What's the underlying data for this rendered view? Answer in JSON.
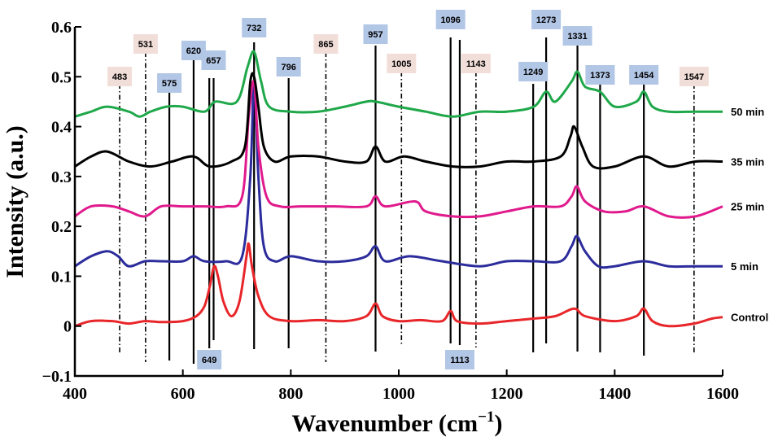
{
  "chart_data": {
    "type": "line",
    "xlabel": "Wavenumber (cm",
    "xlabel_sup": "−1",
    "xlabel_close": ")",
    "ylabel": "Intensity (a.u.)",
    "xlim": [
      400,
      1600
    ],
    "ylim": [
      -0.1,
      0.6
    ],
    "x_ticks": [
      400,
      600,
      800,
      1000,
      1200,
      1400,
      1600
    ],
    "y_ticks": [
      -0.1,
      0,
      0.1,
      0.2,
      0.3,
      0.4,
      0.5,
      0.6
    ],
    "y_tick_labels": [
      "−0.1",
      "0",
      "0.1",
      "0.2",
      "0.3",
      "0.4",
      "0.5",
      "0.6"
    ],
    "series": [
      {
        "name": "Control",
        "color": "#e8262a",
        "points": [
          [
            400,
            0.0
          ],
          [
            430,
            0.01
          ],
          [
            470,
            0.01
          ],
          [
            500,
            0.005
          ],
          [
            530,
            0.01
          ],
          [
            560,
            0.008
          ],
          [
            600,
            0.01
          ],
          [
            625,
            0.02
          ],
          [
            640,
            0.04
          ],
          [
            650,
            0.08
          ],
          [
            658,
            0.12
          ],
          [
            665,
            0.1
          ],
          [
            675,
            0.05
          ],
          [
            690,
            0.02
          ],
          [
            705,
            0.05
          ],
          [
            718,
            0.14
          ],
          [
            722,
            0.165
          ],
          [
            728,
            0.12
          ],
          [
            740,
            0.06
          ],
          [
            760,
            0.02
          ],
          [
            800,
            0.01
          ],
          [
            850,
            0.012
          ],
          [
            900,
            0.01
          ],
          [
            940,
            0.02
          ],
          [
            957,
            0.045
          ],
          [
            970,
            0.02
          ],
          [
            1000,
            0.01
          ],
          [
            1040,
            0.012
          ],
          [
            1080,
            0.01
          ],
          [
            1096,
            0.03
          ],
          [
            1108,
            0.01
          ],
          [
            1150,
            0.005
          ],
          [
            1200,
            0.01
          ],
          [
            1250,
            0.015
          ],
          [
            1290,
            0.02
          ],
          [
            1325,
            0.035
          ],
          [
            1345,
            0.02
          ],
          [
            1400,
            0.01
          ],
          [
            1440,
            0.02
          ],
          [
            1454,
            0.035
          ],
          [
            1470,
            0.01
          ],
          [
            1500,
            0.0
          ],
          [
            1547,
            0.005
          ],
          [
            1580,
            0.015
          ],
          [
            1600,
            0.018
          ]
        ]
      },
      {
        "name": "5 min",
        "color": "#2c2c9c",
        "points": [
          [
            400,
            0.12
          ],
          [
            430,
            0.14
          ],
          [
            460,
            0.15
          ],
          [
            480,
            0.14
          ],
          [
            500,
            0.12
          ],
          [
            530,
            0.13
          ],
          [
            560,
            0.13
          ],
          [
            600,
            0.13
          ],
          [
            620,
            0.14
          ],
          [
            640,
            0.13
          ],
          [
            680,
            0.13
          ],
          [
            710,
            0.14
          ],
          [
            725,
            0.3
          ],
          [
            732,
            0.49
          ],
          [
            740,
            0.3
          ],
          [
            750,
            0.16
          ],
          [
            770,
            0.13
          ],
          [
            800,
            0.14
          ],
          [
            850,
            0.13
          ],
          [
            900,
            0.13
          ],
          [
            940,
            0.14
          ],
          [
            957,
            0.16
          ],
          [
            975,
            0.13
          ],
          [
            1020,
            0.14
          ],
          [
            1080,
            0.13
          ],
          [
            1150,
            0.12
          ],
          [
            1200,
            0.13
          ],
          [
            1250,
            0.13
          ],
          [
            1300,
            0.13
          ],
          [
            1320,
            0.16
          ],
          [
            1330,
            0.18
          ],
          [
            1345,
            0.15
          ],
          [
            1370,
            0.12
          ],
          [
            1400,
            0.12
          ],
          [
            1454,
            0.13
          ],
          [
            1500,
            0.12
          ],
          [
            1550,
            0.12
          ],
          [
            1600,
            0.12
          ]
        ]
      },
      {
        "name": "25 min",
        "color": "#e01a8c",
        "points": [
          [
            400,
            0.22
          ],
          [
            430,
            0.24
          ],
          [
            470,
            0.24
          ],
          [
            500,
            0.23
          ],
          [
            530,
            0.22
          ],
          [
            560,
            0.24
          ],
          [
            600,
            0.24
          ],
          [
            640,
            0.24
          ],
          [
            680,
            0.24
          ],
          [
            710,
            0.26
          ],
          [
            722,
            0.42
          ],
          [
            732,
            0.49
          ],
          [
            740,
            0.36
          ],
          [
            755,
            0.26
          ],
          [
            780,
            0.24
          ],
          [
            820,
            0.24
          ],
          [
            880,
            0.24
          ],
          [
            940,
            0.24
          ],
          [
            957,
            0.26
          ],
          [
            975,
            0.24
          ],
          [
            1030,
            0.25
          ],
          [
            1050,
            0.23
          ],
          [
            1100,
            0.22
          ],
          [
            1150,
            0.22
          ],
          [
            1200,
            0.23
          ],
          [
            1250,
            0.24
          ],
          [
            1300,
            0.24
          ],
          [
            1320,
            0.26
          ],
          [
            1330,
            0.28
          ],
          [
            1345,
            0.25
          ],
          [
            1380,
            0.23
          ],
          [
            1420,
            0.23
          ],
          [
            1454,
            0.24
          ],
          [
            1500,
            0.22
          ],
          [
            1550,
            0.22
          ],
          [
            1600,
            0.24
          ]
        ]
      },
      {
        "name": "35 min",
        "color": "#000000",
        "points": [
          [
            400,
            0.32
          ],
          [
            430,
            0.34
          ],
          [
            460,
            0.35
          ],
          [
            500,
            0.33
          ],
          [
            540,
            0.32
          ],
          [
            580,
            0.33
          ],
          [
            620,
            0.34
          ],
          [
            650,
            0.32
          ],
          [
            690,
            0.33
          ],
          [
            715,
            0.36
          ],
          [
            725,
            0.49
          ],
          [
            732,
            0.5
          ],
          [
            740,
            0.44
          ],
          [
            750,
            0.36
          ],
          [
            770,
            0.33
          ],
          [
            800,
            0.34
          ],
          [
            850,
            0.34
          ],
          [
            900,
            0.33
          ],
          [
            940,
            0.33
          ],
          [
            957,
            0.36
          ],
          [
            975,
            0.33
          ],
          [
            1010,
            0.34
          ],
          [
            1050,
            0.33
          ],
          [
            1100,
            0.32
          ],
          [
            1150,
            0.32
          ],
          [
            1200,
            0.33
          ],
          [
            1250,
            0.33
          ],
          [
            1300,
            0.34
          ],
          [
            1318,
            0.38
          ],
          [
            1325,
            0.4
          ],
          [
            1340,
            0.36
          ],
          [
            1360,
            0.32
          ],
          [
            1400,
            0.32
          ],
          [
            1454,
            0.34
          ],
          [
            1500,
            0.32
          ],
          [
            1550,
            0.33
          ],
          [
            1600,
            0.33
          ]
        ]
      },
      {
        "name": "50 min",
        "color": "#1fa84a",
        "points": [
          [
            400,
            0.42
          ],
          [
            430,
            0.43
          ],
          [
            460,
            0.44
          ],
          [
            500,
            0.43
          ],
          [
            520,
            0.42
          ],
          [
            540,
            0.43
          ],
          [
            570,
            0.44
          ],
          [
            600,
            0.44
          ],
          [
            640,
            0.43
          ],
          [
            660,
            0.45
          ],
          [
            700,
            0.45
          ],
          [
            720,
            0.52
          ],
          [
            732,
            0.55
          ],
          [
            745,
            0.49
          ],
          [
            760,
            0.44
          ],
          [
            800,
            0.43
          ],
          [
            850,
            0.43
          ],
          [
            900,
            0.44
          ],
          [
            940,
            0.45
          ],
          [
            957,
            0.45
          ],
          [
            1000,
            0.44
          ],
          [
            1050,
            0.43
          ],
          [
            1100,
            0.42
          ],
          [
            1150,
            0.43
          ],
          [
            1200,
            0.43
          ],
          [
            1250,
            0.44
          ],
          [
            1273,
            0.47
          ],
          [
            1290,
            0.45
          ],
          [
            1320,
            0.49
          ],
          [
            1331,
            0.51
          ],
          [
            1345,
            0.48
          ],
          [
            1373,
            0.47
          ],
          [
            1400,
            0.44
          ],
          [
            1440,
            0.45
          ],
          [
            1454,
            0.47
          ],
          [
            1470,
            0.44
          ],
          [
            1500,
            0.43
          ],
          [
            1550,
            0.43
          ],
          [
            1600,
            0.43
          ]
        ]
      }
    ],
    "peaks_solid": [
      575,
      620,
      649,
      657,
      732,
      796,
      957,
      1096,
      1113,
      1249,
      1273,
      1331,
      1373,
      1454
    ],
    "peaks_dashed": [
      483,
      531,
      865,
      1005,
      1143,
      1547
    ],
    "peak_labels_top": [
      {
        "text": "483",
        "x": 483,
        "color": "#f2ded8"
      },
      {
        "text": "531",
        "x": 531,
        "color": "#f2ded8"
      },
      {
        "text": "575",
        "x": 575,
        "color": "#b2c6e6"
      },
      {
        "text": "620",
        "x": 620,
        "color": "#b2c6e6"
      },
      {
        "text": "657",
        "x": 657,
        "color": "#b2c6e6"
      },
      {
        "text": "732",
        "x": 732,
        "color": "#b2c6e6"
      },
      {
        "text": "796",
        "x": 796,
        "color": "#b2c6e6"
      },
      {
        "text": "865",
        "x": 865,
        "color": "#f2ded8"
      },
      {
        "text": "957",
        "x": 957,
        "color": "#b2c6e6"
      },
      {
        "text": "1005",
        "x": 1005,
        "color": "#f2ded8"
      },
      {
        "text": "1096",
        "x": 1096,
        "color": "#b2c6e6"
      },
      {
        "text": "1143",
        "x": 1143,
        "color": "#f2ded8"
      },
      {
        "text": "1249",
        "x": 1249,
        "color": "#b2c6e6"
      },
      {
        "text": "1273",
        "x": 1273,
        "color": "#b2c6e6"
      },
      {
        "text": "1331",
        "x": 1331,
        "color": "#b2c6e6"
      },
      {
        "text": "1373",
        "x": 1373,
        "color": "#b2c6e6"
      },
      {
        "text": "1454",
        "x": 1454,
        "color": "#b2c6e6"
      },
      {
        "text": "1547",
        "x": 1547,
        "color": "#f2ded8"
      }
    ],
    "peak_labels_bottom": [
      {
        "text": "649",
        "x": 649,
        "color": "#b2c6e6"
      },
      {
        "text": "1113",
        "x": 1113,
        "color": "#b2c6e6"
      }
    ]
  }
}
